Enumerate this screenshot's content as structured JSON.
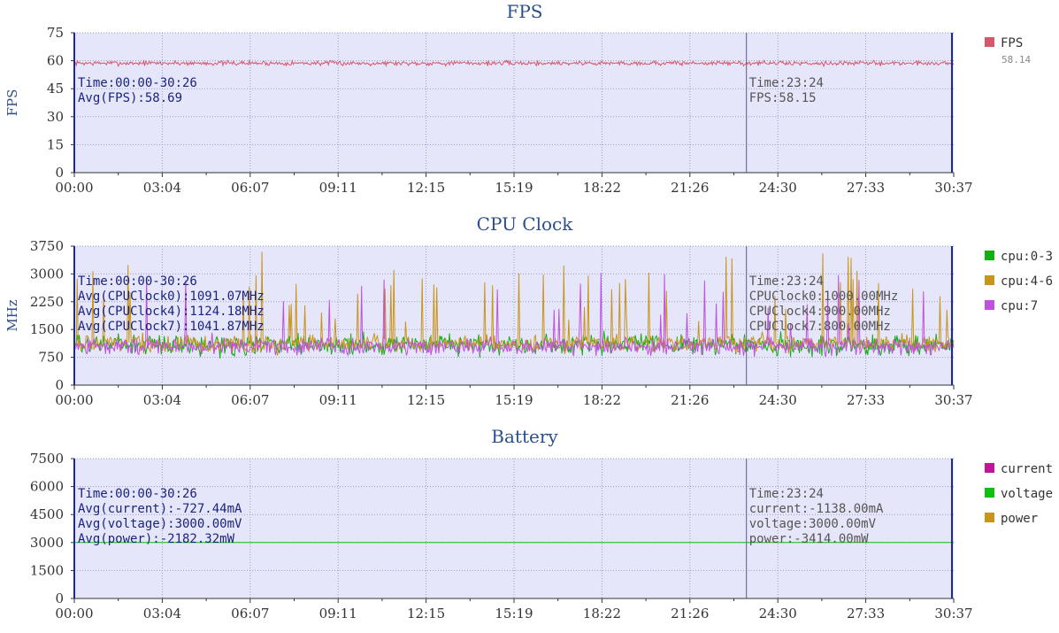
{
  "colors": {
    "plot_bg": "#e6e6fa",
    "grid": "#9a9acc",
    "axis": "#1a2a9c",
    "fps": "#d8566a",
    "cpu0": "#10b010",
    "cpu4": "#c8941a",
    "cpu7": "#c050e0",
    "current": "#c0149c",
    "voltage": "#10c010",
    "power": "#c8941a"
  },
  "chart_data": [
    {
      "type": "line",
      "title": "FPS",
      "ylabel": "FPS",
      "ylim": [
        0,
        75
      ],
      "yticks": [
        "0",
        "15",
        "30",
        "45",
        "60",
        "75"
      ],
      "xticks": [
        "00:00",
        "03:04",
        "06:07",
        "09:11",
        "12:15",
        "15:19",
        "18:22",
        "21:26",
        "24:30",
        "27:33",
        "30:37"
      ],
      "x_range_seconds": [
        0,
        1837
      ],
      "cursor_seconds": 1404,
      "grid": true,
      "legend_position": "right",
      "series": [
        {
          "name": "FPS",
          "color_key": "fps",
          "sub_value": "58.14",
          "avg": 58.69,
          "noise": 1.2,
          "spikes": 0.0
        }
      ],
      "summary_lines": [
        "Time:00:00-30:26",
        "Avg(FPS):58.69"
      ],
      "cursor_lines": [
        "Time:23:24",
        "FPS:58.15"
      ]
    },
    {
      "type": "line",
      "title": "CPU Clock",
      "ylabel": "MHz",
      "ylim": [
        0,
        3750
      ],
      "yticks": [
        "0",
        "750",
        "1500",
        "2250",
        "3000",
        "3750"
      ],
      "xticks": [
        "00:00",
        "03:04",
        "06:07",
        "09:11",
        "12:15",
        "15:19",
        "18:22",
        "21:26",
        "24:30",
        "27:33",
        "30:37"
      ],
      "x_range_seconds": [
        0,
        1837
      ],
      "cursor_seconds": 1404,
      "grid": true,
      "legend_position": "right",
      "series": [
        {
          "name": "cpu:0-3",
          "color_key": "cpu0",
          "avg": 1091.07,
          "noise": 260,
          "spikes": 0.0
        },
        {
          "name": "cpu:4-6",
          "color_key": "cpu4",
          "avg": 1124.18,
          "noise": 230,
          "spikes": 0.05
        },
        {
          "name": "cpu:7",
          "color_key": "cpu7",
          "avg": 1041.87,
          "noise": 220,
          "spikes": 0.03
        }
      ],
      "summary_lines": [
        "Time:00:00-30:26",
        "Avg(CPUClock0):1091.07MHz",
        "Avg(CPUClock4):1124.18MHz",
        "Avg(CPUClock7):1041.87MHz"
      ],
      "cursor_lines": [
        "Time:23:24",
        "CPUClock0:1000.00MHz",
        "CPUClock4:900.00MHz",
        "CPUClock7:800.00MHz"
      ]
    },
    {
      "type": "line",
      "title": "Battery",
      "ylabel": "",
      "ylim": [
        0,
        7500
      ],
      "yticks": [
        "0",
        "1500",
        "3000",
        "4500",
        "6000",
        "7500"
      ],
      "xticks": [
        "00:00",
        "03:04",
        "06:07",
        "09:11",
        "12:15",
        "15:19",
        "18:22",
        "21:26",
        "24:30",
        "27:33",
        "30:37"
      ],
      "x_range_seconds": [
        0,
        1837
      ],
      "cursor_seconds": 1404,
      "grid": true,
      "legend_position": "right",
      "series": [
        {
          "name": "current",
          "color_key": "current",
          "avg": -727.44,
          "noise": 0,
          "spikes": 0.0
        },
        {
          "name": "voltage",
          "color_key": "voltage",
          "avg": 3000.0,
          "noise": 0,
          "spikes": 0.0
        },
        {
          "name": "power",
          "color_key": "power",
          "avg": -2182.32,
          "noise": 0,
          "spikes": 0.0
        }
      ],
      "summary_lines": [
        "Time:00:00-30:26",
        "Avg(current):-727.44mA",
        "Avg(voltage):3000.00mV",
        "Avg(power):-2182.32mW"
      ],
      "cursor_lines": [
        "Time:23:24",
        "current:-1138.00mA",
        "voltage:3000.00mV",
        "power:-3414.00mW"
      ]
    }
  ]
}
